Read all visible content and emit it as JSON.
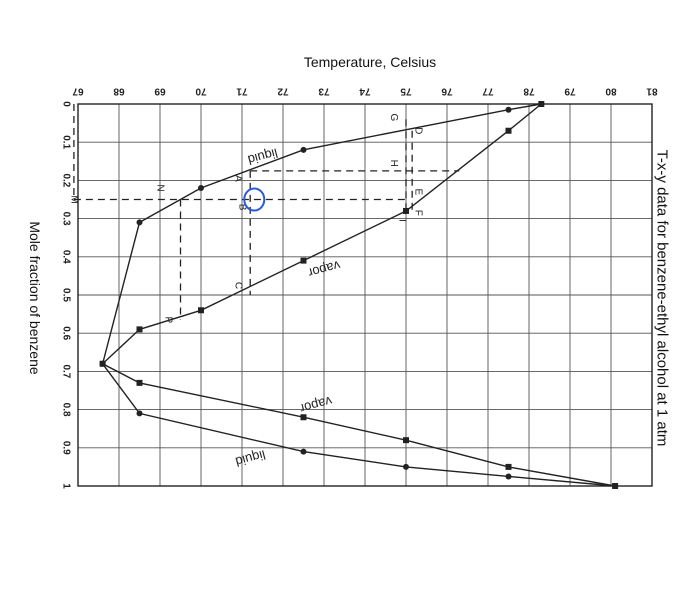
{
  "chart_data": {
    "type": "line",
    "title": "T-x-y data for benzene-ethyl alcohol at 1 atm",
    "xlabel": "Mole fraction of benzene",
    "ylabel": "Temperature, Celsius",
    "x_ticks": [
      "0",
      "0.1",
      "0.2",
      "0.3",
      "0.4",
      "0.5",
      "0.6",
      "0.7",
      "0.8",
      "0.9",
      "1"
    ],
    "y_ticks": [
      "67",
      "68",
      "69",
      "70",
      "71",
      "72",
      "73",
      "74",
      "75",
      "76",
      "77",
      "78",
      "79",
      "80",
      "81"
    ],
    "xlim": [
      0,
      1
    ],
    "ylim": [
      67,
      81
    ],
    "grid": true,
    "series": [
      {
        "name": "liquid",
        "marker": "circle",
        "x": [
          0,
          0.015,
          0.12,
          0.22,
          0.31,
          0.68,
          0.81,
          0.91,
          0.95,
          0.975,
          1
        ],
        "y": [
          78.3,
          77.5,
          72.5,
          70.0,
          68.5,
          67.6,
          68.5,
          72.5,
          75.0,
          77.5,
          80.1
        ]
      },
      {
        "name": "vapor",
        "marker": "square",
        "x": [
          0,
          0.07,
          0.28,
          0.41,
          0.54,
          0.59,
          0.68,
          0.73,
          0.82,
          0.88,
          0.95,
          1
        ],
        "y": [
          78.3,
          77.5,
          75.0,
          72.5,
          70.0,
          68.5,
          67.6,
          68.5,
          72.5,
          75.0,
          77.5,
          80.1
        ]
      }
    ],
    "annotations": [
      {
        "text": "liquid",
        "x": 0.135,
        "y": 71.5
      },
      {
        "text": "vapor",
        "x": 0.43,
        "y": 73.0
      },
      {
        "text": "vapor",
        "x": 0.785,
        "y": 72.8
      },
      {
        "text": "liquid",
        "x": 0.925,
        "y": 71.2
      },
      {
        "text": "A",
        "x": 0.195,
        "y": 70.9
      },
      {
        "text": "B",
        "x": 0.27,
        "y": 71.0
      },
      {
        "text": "C",
        "x": 0.475,
        "y": 70.9
      },
      {
        "text": "D",
        "x": 0.07,
        "y": 75.3
      },
      {
        "text": "E",
        "x": 0.23,
        "y": 75.3
      },
      {
        "text": "F",
        "x": 0.285,
        "y": 75.3
      },
      {
        "text": "G",
        "x": 0.035,
        "y": 74.7
      },
      {
        "text": "H",
        "x": 0.155,
        "y": 74.7
      },
      {
        "text": "I",
        "x": 0.305,
        "y": 74.9
      },
      {
        "text": "M",
        "x": 0.25,
        "y": 66.9
      },
      {
        "text": "N",
        "x": 0.22,
        "y": 69.0
      },
      {
        "text": "P",
        "x": 0.565,
        "y": 69.2
      }
    ],
    "construction_lines": [
      {
        "x": [
          0,
          0.25
        ],
        "y": [
          66.9,
          66.9
        ]
      },
      {
        "x": [
          0.25,
          0.25
        ],
        "y": [
          66.9,
          75.0
        ]
      },
      {
        "x": [
          0.175,
          0.175
        ],
        "y": [
          71.2,
          76.3
        ]
      },
      {
        "x": [
          0.25,
          0.565
        ],
        "y": [
          69.5,
          69.5
        ]
      },
      {
        "x": [
          0.175,
          0.5
        ],
        "y": [
          71.2,
          71.2
        ]
      },
      {
        "x": [
          0.04,
          0.28
        ],
        "y": [
          75.0,
          75.0
        ]
      },
      {
        "x": [
          0.07,
          0.28
        ],
        "y": [
          75.15,
          75.15
        ]
      }
    ],
    "highlight_marker": {
      "x": 0.25,
      "y": 71.3,
      "color": "#2a5bd7"
    }
  }
}
